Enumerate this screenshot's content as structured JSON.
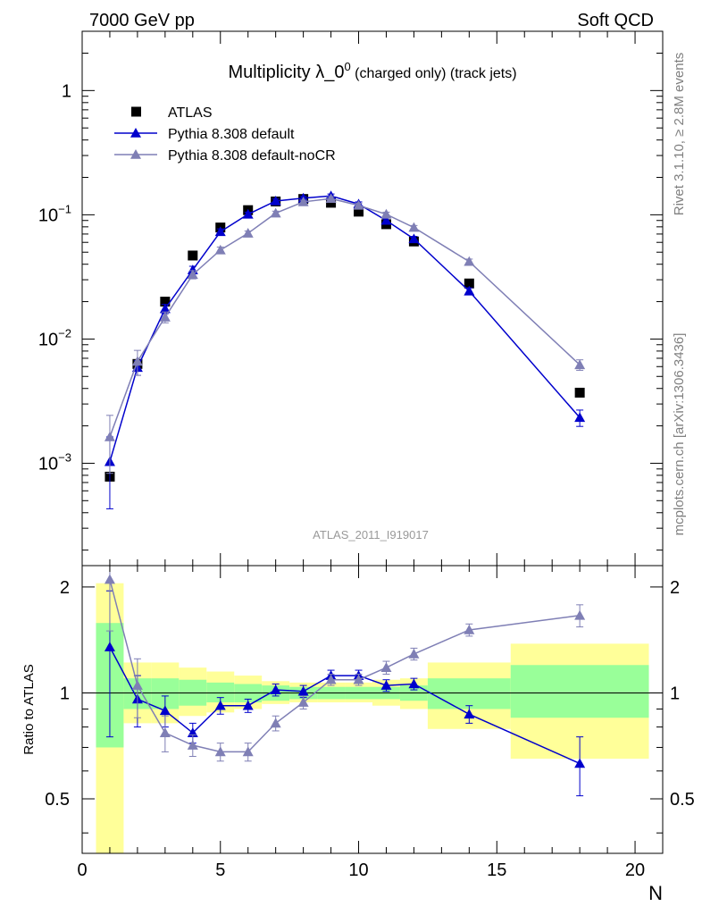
{
  "header": {
    "left": "7000 GeV pp",
    "right": "Soft QCD"
  },
  "side_labels": {
    "top": "Rivet 3.1.10, ≥ 2.8M events",
    "bottom": "mcplots.cern.ch [arXiv:1306.3436]"
  },
  "chart_data": [
    {
      "type": "scatter",
      "panel": "main",
      "title": "Multiplicity λ_0",
      "title_sup": "0",
      "title_suffix": " (charged only) (track jets)",
      "analysis": "ATLAS_2011_I919017",
      "yscale": "log",
      "ylim": [
        0.00015,
        3
      ],
      "xlim": [
        0,
        21
      ],
      "yticks": [
        {
          "value": 0.001,
          "base": "10",
          "exp": "−3"
        },
        {
          "value": 0.01,
          "base": "10",
          "exp": "−2"
        },
        {
          "value": 0.1,
          "base": "10",
          "exp": "−1"
        },
        {
          "value": 1,
          "base": "1",
          "exp": ""
        }
      ],
      "legend_position": "top-left",
      "series": [
        {
          "name": "ATLAS",
          "style": "data",
          "color": "#000000",
          "x": [
            1,
            2,
            3,
            4,
            5,
            6,
            7,
            8,
            9,
            10,
            11,
            12,
            14,
            18
          ],
          "y": [
            0.00078,
            0.0063,
            0.02,
            0.047,
            0.079,
            0.109,
            0.128,
            0.134,
            0.125,
            0.106,
            0.084,
            0.061,
            0.028,
            0.0037
          ]
        },
        {
          "name": "Pythia 8.308 default",
          "style": "mc",
          "color": "#0000cc",
          "x": [
            1,
            2,
            3,
            4,
            5,
            6,
            7,
            8,
            9,
            10,
            11,
            12,
            14,
            18
          ],
          "y": [
            0.00103,
            0.0059,
            0.0175,
            0.036,
            0.073,
            0.101,
            0.129,
            0.136,
            0.142,
            0.122,
            0.09,
            0.064,
            0.0243,
            0.00233
          ],
          "yerr": [
            0.0006,
            0.0008,
            0.0015,
            0.0025,
            0.004,
            0.004,
            0.005,
            0.005,
            0.005,
            0.005,
            0.004,
            0.003,
            0.0015,
            0.00035
          ]
        },
        {
          "name": "Pythia 8.308 default-noCR",
          "style": "mc",
          "color": "#7f7fb5",
          "x": [
            1,
            2,
            3,
            4,
            5,
            6,
            7,
            8,
            9,
            10,
            11,
            12,
            14,
            18
          ],
          "y": [
            0.00163,
            0.0066,
            0.015,
            0.033,
            0.052,
            0.071,
            0.103,
            0.127,
            0.135,
            0.119,
            0.101,
            0.079,
            0.042,
            0.0062
          ],
          "yerr": [
            0.0008,
            0.0015,
            0.0015,
            0.0025,
            0.003,
            0.003,
            0.004,
            0.004,
            0.005,
            0.005,
            0.004,
            0.003,
            0.002,
            0.0006
          ]
        }
      ]
    },
    {
      "type": "scatter",
      "panel": "ratio",
      "ylabel": "Ratio to ATLAS",
      "xlabel": "N",
      "ylim": [
        0.35,
        2.3
      ],
      "xlim": [
        0,
        21
      ],
      "yticks": [
        0.5,
        1,
        2
      ],
      "xticks": [
        0,
        5,
        10,
        15,
        20
      ],
      "bands": {
        "edges": [
          0.5,
          1.5,
          2.5,
          3.5,
          4.5,
          5.5,
          6.5,
          7.5,
          8.5,
          9.5,
          10.5,
          11.5,
          12.5,
          15.5,
          20.5
        ],
        "inner_color": "#99ff99",
        "outer_color": "#ffff99",
        "inner_lo": [
          0.7,
          0.9,
          0.9,
          0.92,
          0.94,
          0.94,
          0.95,
          0.96,
          0.96,
          0.96,
          0.96,
          0.95,
          0.9,
          0.85
        ],
        "inner_hi": [
          1.58,
          1.1,
          1.1,
          1.09,
          1.07,
          1.06,
          1.05,
          1.04,
          1.04,
          1.04,
          1.04,
          1.05,
          1.1,
          1.2
        ],
        "outer_lo": [
          0.3,
          0.82,
          0.82,
          0.86,
          0.88,
          0.9,
          0.93,
          0.94,
          0.94,
          0.94,
          0.92,
          0.9,
          0.79,
          0.65
        ],
        "outer_hi": [
          2.05,
          1.22,
          1.22,
          1.18,
          1.15,
          1.12,
          1.08,
          1.07,
          1.07,
          1.07,
          1.09,
          1.1,
          1.22,
          1.38
        ]
      },
      "series": [
        {
          "name": "Pythia 8.308 default",
          "color": "#0000cc",
          "x": [
            1,
            2,
            3,
            4,
            5,
            6,
            7,
            8,
            9,
            10,
            11,
            12,
            14,
            18
          ],
          "y": [
            1.35,
            0.96,
            0.89,
            0.77,
            0.92,
            0.92,
            1.02,
            1.01,
            1.12,
            1.12,
            1.05,
            1.06,
            0.87,
            0.63
          ],
          "yerr_lo": [
            0.6,
            0.16,
            0.09,
            0.05,
            0.05,
            0.04,
            0.04,
            0.04,
            0.04,
            0.04,
            0.04,
            0.04,
            0.05,
            0.12
          ],
          "yerr_hi": [
            0.6,
            0.16,
            0.09,
            0.05,
            0.05,
            0.04,
            0.04,
            0.04,
            0.04,
            0.04,
            0.04,
            0.04,
            0.05,
            0.12
          ]
        },
        {
          "name": "Pythia 8.308 default-noCR",
          "color": "#7f7fb5",
          "x": [
            1,
            2,
            3,
            4,
            5,
            6,
            7,
            8,
            9,
            10,
            11,
            12,
            14,
            18
          ],
          "y": [
            2.1,
            1.05,
            0.77,
            0.71,
            0.68,
            0.68,
            0.82,
            0.94,
            1.09,
            1.09,
            1.18,
            1.29,
            1.51,
            1.66
          ],
          "yerr_lo": [
            0.6,
            0.2,
            0.09,
            0.05,
            0.04,
            0.04,
            0.04,
            0.04,
            0.04,
            0.04,
            0.05,
            0.05,
            0.06,
            0.12
          ],
          "yerr_hi": [
            0.6,
            0.2,
            0.09,
            0.05,
            0.04,
            0.04,
            0.04,
            0.04,
            0.04,
            0.04,
            0.05,
            0.05,
            0.06,
            0.12
          ]
        }
      ]
    }
  ]
}
